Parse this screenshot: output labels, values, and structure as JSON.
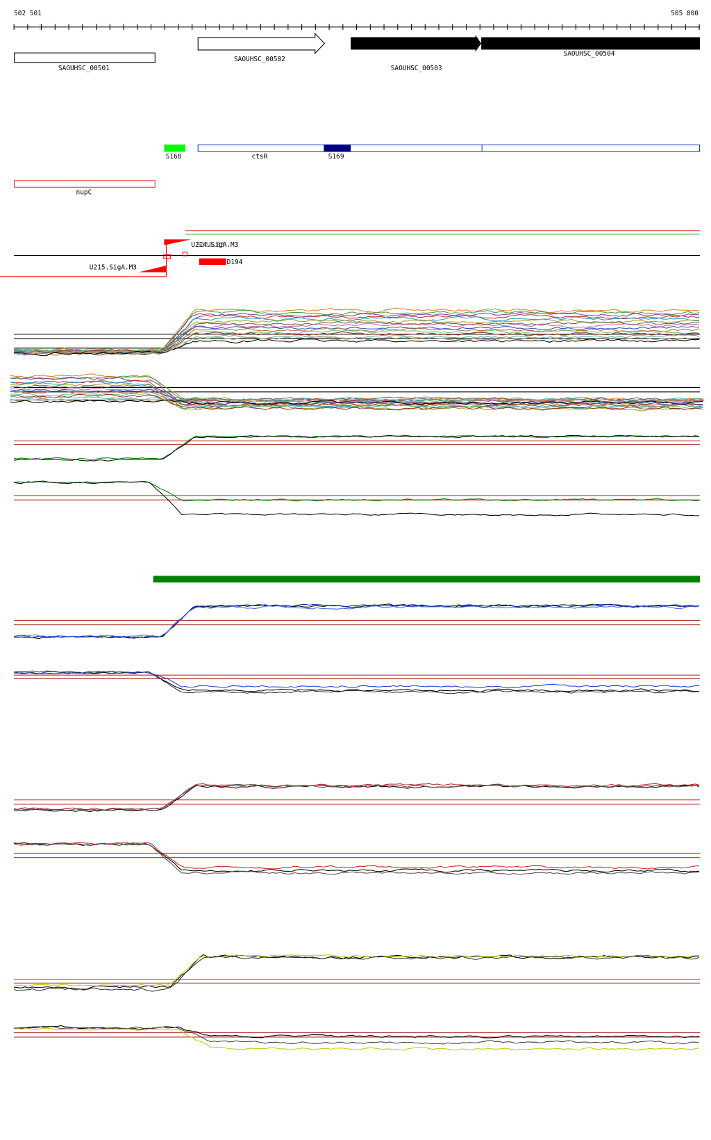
{
  "ruler": {
    "start": "502 501",
    "end": "505 000"
  },
  "genes": [
    {
      "label": "SAOUHSC_00501"
    },
    {
      "label": "SAOUHSC_00502"
    },
    {
      "label": "SAOUHSC_00503"
    },
    {
      "label": "SAOUHSC_00504"
    }
  ],
  "features": [
    {
      "label": "S168"
    },
    {
      "label": "ctsR"
    },
    {
      "label": "S169"
    },
    {
      "label": "nupC"
    }
  ],
  "annotations": [
    {
      "label": "U214.SigA.M3"
    },
    {
      "label": "S168.B3"
    },
    {
      "label": "D194"
    },
    {
      "label": "U215.SigA.M3"
    }
  ]
}
